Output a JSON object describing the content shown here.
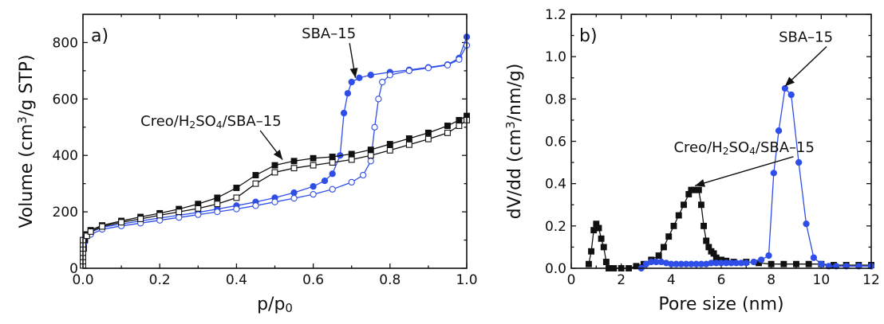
{
  "chart_data": [
    {
      "panel_label": "a)",
      "type": "line",
      "xlabel": "p/p",
      "xlabel_sub": "0",
      "ylabel_parts": [
        "Volume (cm",
        "3",
        "/g STP)"
      ],
      "xlim": [
        0,
        1.0
      ],
      "ylim": [
        0,
        900
      ],
      "xticks": [
        "0.0",
        "0.2",
        "0.4",
        "0.6",
        "0.8",
        "1.0"
      ],
      "yticks": [
        "0",
        "200",
        "400",
        "600",
        "800"
      ],
      "annotations": [
        {
          "text_parts": [
            "SBA–15"
          ],
          "x": 0.57,
          "y": 815,
          "target_x": 0.71,
          "target_y": 675
        },
        {
          "text_parts": [
            "Creo/H",
            "2",
            "SO",
            "4",
            "/SBA–15"
          ],
          "x": 0.15,
          "y": 505,
          "target_x": 0.52,
          "target_y": 385
        }
      ],
      "series": [
        {
          "color": "#2f4ee8",
          "marker": "circle",
          "filled": true,
          "x": [
            0.002,
            0.005,
            0.01,
            0.02,
            0.05,
            0.1,
            0.15,
            0.2,
            0.25,
            0.3,
            0.35,
            0.4,
            0.45,
            0.5,
            0.55,
            0.6,
            0.63,
            0.65,
            0.67,
            0.68,
            0.69,
            0.7,
            0.72,
            0.75,
            0.8,
            0.85,
            0.9,
            0.95,
            0.98,
            1.0
          ],
          "y": [
            85,
            100,
            115,
            128,
            145,
            157,
            168,
            178,
            188,
            198,
            210,
            222,
            235,
            250,
            268,
            290,
            310,
            335,
            400,
            550,
            620,
            660,
            675,
            685,
            695,
            703,
            712,
            722,
            745,
            820
          ]
        },
        {
          "color": "#2f4ee8",
          "marker": "circle",
          "filled": false,
          "x": [
            0.005,
            0.02,
            0.05,
            0.1,
            0.15,
            0.2,
            0.25,
            0.3,
            0.35,
            0.4,
            0.45,
            0.5,
            0.55,
            0.6,
            0.65,
            0.7,
            0.73,
            0.75,
            0.76,
            0.77,
            0.78,
            0.8,
            0.85,
            0.9,
            0.95,
            0.98,
            1.0
          ],
          "y": [
            95,
            120,
            138,
            150,
            160,
            170,
            180,
            190,
            200,
            210,
            222,
            235,
            248,
            262,
            280,
            305,
            330,
            380,
            500,
            600,
            660,
            685,
            700,
            710,
            720,
            740,
            790
          ]
        },
        {
          "color": "#111111",
          "marker": "square",
          "filled": true,
          "x": [
            0.002,
            0.005,
            0.01,
            0.02,
            0.05,
            0.1,
            0.15,
            0.2,
            0.25,
            0.3,
            0.35,
            0.4,
            0.45,
            0.5,
            0.55,
            0.6,
            0.65,
            0.7,
            0.75,
            0.8,
            0.85,
            0.9,
            0.95,
            0.98,
            1.0
          ],
          "y": [
            70,
            100,
            120,
            135,
            152,
            168,
            182,
            195,
            210,
            228,
            250,
            285,
            330,
            365,
            380,
            390,
            395,
            405,
            420,
            440,
            460,
            480,
            505,
            525,
            540
          ]
        },
        {
          "color": "#111111",
          "marker": "square",
          "filled": false,
          "x": [
            0.0,
            0.0,
            0.0,
            0.0,
            0.0,
            0.0,
            0.0,
            0.01,
            0.02,
            0.05,
            0.1,
            0.15,
            0.2,
            0.25,
            0.3,
            0.35,
            0.4,
            0.45,
            0.5,
            0.55,
            0.6,
            0.65,
            0.7,
            0.75,
            0.8,
            0.85,
            0.9,
            0.95,
            0.98,
            1.0
          ],
          "y": [
            10,
            25,
            40,
            55,
            70,
            85,
            100,
            115,
            130,
            148,
            163,
            175,
            188,
            200,
            212,
            228,
            250,
            300,
            340,
            355,
            365,
            375,
            385,
            400,
            418,
            438,
            458,
            480,
            505,
            525
          ]
        }
      ]
    },
    {
      "panel_label": "b)",
      "type": "line",
      "xlabel": "Pore size (nm)",
      "ylabel_parts": [
        "dV/dd (cm",
        "3",
        "/nm/g)"
      ],
      "xlim": [
        0,
        12
      ],
      "ylim": [
        0,
        1.2
      ],
      "xticks": [
        "0",
        "2",
        "4",
        "6",
        "8",
        "10",
        "12"
      ],
      "yticks": [
        "0.0",
        "0.2",
        "0.4",
        "0.6",
        "0.8",
        "1.0",
        "1.2"
      ],
      "annotations": [
        {
          "text_parts": [
            "SBA–15"
          ],
          "x": 8.3,
          "y": 1.07,
          "target_x": 8.55,
          "target_y": 0.86
        },
        {
          "text_parts": [
            "Creo/H",
            "2",
            "SO",
            "4",
            "/SBA–15"
          ],
          "x": 4.1,
          "y": 0.55,
          "target_x": 4.95,
          "target_y": 0.39
        }
      ],
      "series": [
        {
          "color": "#111111",
          "marker": "square",
          "filled": true,
          "x": [
            0.7,
            0.8,
            0.9,
            1.0,
            1.1,
            1.2,
            1.3,
            1.4,
            1.5,
            1.7,
            2.0,
            2.3,
            2.6,
            2.9,
            3.2,
            3.5,
            3.7,
            3.9,
            4.1,
            4.3,
            4.5,
            4.7,
            4.8,
            4.9,
            5.0,
            5.1,
            5.2,
            5.3,
            5.4,
            5.5,
            5.6,
            5.7,
            5.8,
            6.0,
            6.2,
            6.5,
            7.0,
            7.5,
            8.0,
            8.5,
            9.0,
            9.5,
            10.0,
            10.5,
            11.0,
            11.5,
            12.0
          ],
          "y": [
            0.02,
            0.08,
            0.18,
            0.21,
            0.19,
            0.14,
            0.1,
            0.03,
            0.0,
            0.0,
            0.0,
            0.0,
            0.01,
            0.02,
            0.04,
            0.06,
            0.1,
            0.15,
            0.2,
            0.25,
            0.3,
            0.35,
            0.37,
            0.37,
            0.37,
            0.37,
            0.3,
            0.2,
            0.13,
            0.1,
            0.08,
            0.07,
            0.05,
            0.04,
            0.035,
            0.03,
            0.03,
            0.025,
            0.02,
            0.02,
            0.02,
            0.02,
            0.02,
            0.015,
            0.015,
            0.015,
            0.015
          ]
        },
        {
          "color": "#2f4ee8",
          "marker": "circle",
          "filled": true,
          "x": [
            2.8,
            3.0,
            3.2,
            3.4,
            3.6,
            3.8,
            4.0,
            4.2,
            4.4,
            4.6,
            4.8,
            5.0,
            5.2,
            5.4,
            5.6,
            5.8,
            6.0,
            6.2,
            6.4,
            6.6,
            6.8,
            7.0,
            7.3,
            7.6,
            7.9,
            8.1,
            8.3,
            8.55,
            8.8,
            9.1,
            9.4,
            9.7,
            10.0,
            10.3,
            10.6,
            11.0,
            11.5,
            12.0
          ],
          "y": [
            0.0,
            0.02,
            0.03,
            0.03,
            0.03,
            0.025,
            0.02,
            0.02,
            0.02,
            0.02,
            0.02,
            0.02,
            0.02,
            0.02,
            0.025,
            0.025,
            0.025,
            0.025,
            0.025,
            0.025,
            0.025,
            0.025,
            0.03,
            0.04,
            0.06,
            0.45,
            0.65,
            0.85,
            0.82,
            0.5,
            0.21,
            0.05,
            0.02,
            0.01,
            0.01,
            0.01,
            0.01,
            0.01
          ]
        }
      ]
    }
  ]
}
